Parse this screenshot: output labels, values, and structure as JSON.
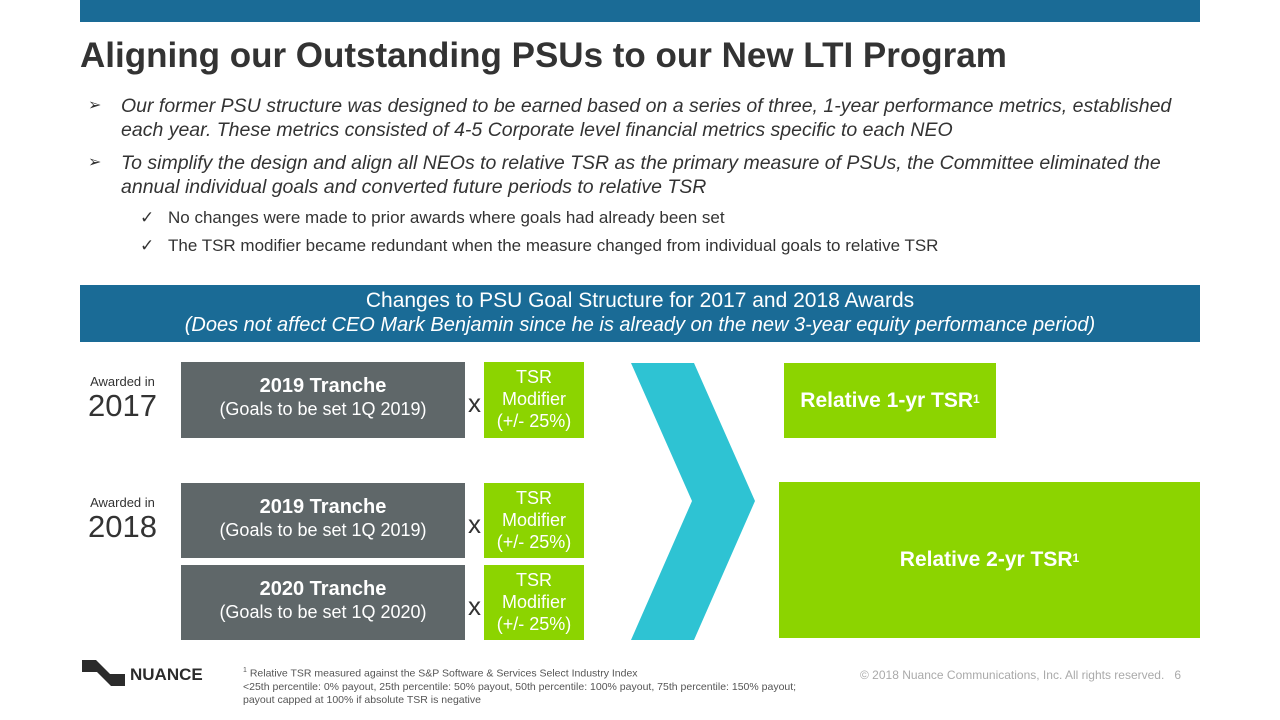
{
  "title": "Aligning our Outstanding PSUs to our New LTI Program",
  "bullets": [
    "Our former PSU structure was designed to be earned based on a series of three, 1-year performance metrics, established each year. These metrics consisted of 4-5 Corporate level financial metrics specific to each NEO",
    "To simplify the design and align all NEOs to relative TSR as the primary measure of PSUs, the Committee eliminated the annual individual goals and converted future periods to relative TSR"
  ],
  "bullet_marker": "➢",
  "checks": [
    "No changes were made to prior awards where goals had already been set",
    "The TSR modifier became redundant when the measure changed from individual goals to relative TSR"
  ],
  "check_marker": "✓",
  "banner": {
    "title": "Changes to PSU Goal Structure for 2017 and 2018 Awards",
    "subtitle": "(Does not affect CEO Mark Benjamin since he is already on the new 3-year equity performance period)"
  },
  "awards": [
    {
      "label": "Awarded in",
      "year": "2017"
    },
    {
      "label": "Awarded in",
      "year": "2018"
    }
  ],
  "tranches": [
    {
      "name": "2019 Tranche",
      "goal": "(Goals to be set 1Q 2019)"
    },
    {
      "name": "2019 Tranche",
      "goal": "(Goals to be set 1Q 2019)"
    },
    {
      "name": "2020 Tranche",
      "goal": "(Goals to be set 1Q 2020)"
    }
  ],
  "times": "x",
  "modifier": {
    "l1": "TSR",
    "l2": "Modifier",
    "l3": "(+/- 25%)"
  },
  "results": [
    {
      "text": "Relative 1-yr TSR",
      "sup": "1"
    },
    {
      "text": "Relative 2-yr TSR",
      "sup": "1"
    }
  ],
  "footnote": {
    "sup": "1",
    "lines": [
      "Relative TSR measured against the S&P Software & Services Select Industry Index",
      "<25th percentile: 0% payout, 25th percentile: 50% payout, 50th percentile: 100% payout, 75th percentile: 150% payout;",
      "payout capped at 100% if absolute TSR is negative"
    ]
  },
  "logo": "NUANCE",
  "copyright": "© 2018 Nuance Communications, Inc. All rights reserved.",
  "page": "6",
  "colors": {
    "blue": "#1a6b96",
    "green": "#8cd400",
    "gray": "#5f6769",
    "teal": "#2ec3d3"
  }
}
